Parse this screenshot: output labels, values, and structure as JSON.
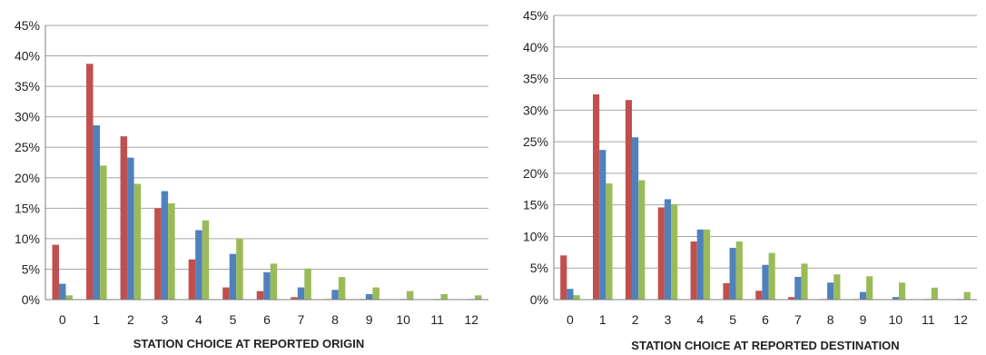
{
  "chart_data": [
    {
      "type": "bar",
      "categories": [
        "0",
        "1",
        "2",
        "3",
        "4",
        "5",
        "6",
        "7",
        "8",
        "9",
        "10",
        "11",
        "12"
      ],
      "series": [
        {
          "values": [
            9.0,
            38.7,
            26.8,
            15.0,
            6.6,
            2.0,
            1.4,
            0.4,
            0.1,
            0.1,
            0.0,
            0.0,
            0.0
          ]
        },
        {
          "values": [
            2.6,
            28.6,
            23.3,
            17.8,
            11.4,
            7.5,
            4.5,
            2.0,
            1.6,
            0.9,
            0.1,
            0.1,
            0.1
          ]
        },
        {
          "values": [
            0.7,
            22.0,
            19.0,
            15.8,
            13.0,
            10.0,
            5.9,
            5.1,
            3.7,
            2.0,
            1.4,
            0.9,
            0.7
          ]
        }
      ],
      "xlabel": "STATION CHOICE AT REPORTED ORIGIN",
      "ylabel": "",
      "ylim": [
        0,
        45
      ],
      "yticks": [
        "0%",
        "5%",
        "10%",
        "15%",
        "20%",
        "25%",
        "30%",
        "35%",
        "40%",
        "45%"
      ],
      "grid": true,
      "colors": [
        "#c0504d",
        "#4f81bd",
        "#9bbb59"
      ]
    },
    {
      "type": "bar",
      "categories": [
        "0",
        "1",
        "2",
        "3",
        "4",
        "5",
        "6",
        "7",
        "8",
        "9",
        "10",
        "11",
        "12"
      ],
      "series": [
        {
          "values": [
            7.0,
            32.5,
            31.6,
            14.6,
            9.2,
            2.6,
            1.4,
            0.4,
            0.1,
            0.1,
            0.0,
            0.0,
            0.0
          ]
        },
        {
          "values": [
            1.7,
            23.7,
            25.7,
            15.9,
            11.1,
            8.2,
            5.5,
            3.6,
            2.7,
            1.2,
            0.4,
            0.1,
            0.1
          ]
        },
        {
          "values": [
            0.7,
            18.4,
            18.9,
            15.1,
            11.1,
            9.2,
            7.4,
            5.7,
            4.0,
            3.7,
            2.7,
            1.9,
            1.2
          ]
        }
      ],
      "xlabel": "STATION CHOICE AT REPORTED DESTINATION",
      "ylabel": "",
      "ylim": [
        0,
        45
      ],
      "yticks": [
        "0%",
        "5%",
        "10%",
        "15%",
        "20%",
        "25%",
        "30%",
        "35%",
        "40%",
        "45%"
      ],
      "grid": true,
      "colors": [
        "#c0504d",
        "#4f81bd",
        "#9bbb59"
      ]
    }
  ]
}
